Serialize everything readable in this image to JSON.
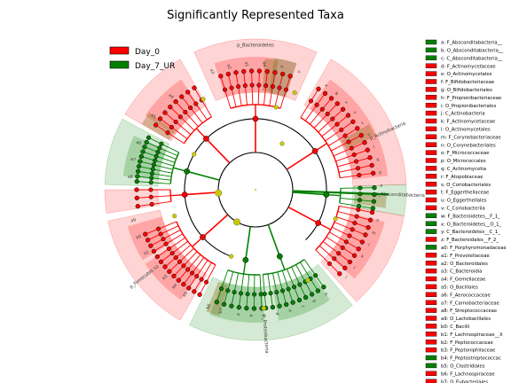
{
  "chart_data": {
    "type": "cladogram",
    "title": "Significantly Represented Taxa",
    "groups": [
      {
        "name": "Day_0",
        "color": "#ff0000"
      },
      {
        "name": "Day_7_UR",
        "color": "#008000"
      }
    ],
    "key_entries": [
      {
        "label": "a: F_Absconditabacteria__",
        "group": "Day_7_UR"
      },
      {
        "label": "b: O_Absconditabacteria__",
        "group": "Day_7_UR"
      },
      {
        "label": "c: C_Absconditabacteria__",
        "group": "Day_7_UR"
      },
      {
        "label": "d: F_Actinomycetaceae",
        "group": "Day_0"
      },
      {
        "label": "e: O_Actinomycetales",
        "group": "Day_0"
      },
      {
        "label": "f: F_Bifidobacteriaceae",
        "group": "Day_0"
      },
      {
        "label": "g: O_Bifidobacteriales",
        "group": "Day_0"
      },
      {
        "label": "h: F_Propionibacteriaceae",
        "group": "Day_0"
      },
      {
        "label": "i: O_Propionibacteriales",
        "group": "Day_0"
      },
      {
        "label": "j: C_Actinobacteria",
        "group": "Day_0"
      },
      {
        "label": "k: F_Actinomycetaceae",
        "group": "Day_0"
      },
      {
        "label": "l: O_Actinomycetales",
        "group": "Day_0"
      },
      {
        "label": "m: F_Corynebacteriaceae",
        "group": "Day_0"
      },
      {
        "label": "n: O_Corynebacteriales",
        "group": "Day_0"
      },
      {
        "label": "o: F_Micrococcaceae",
        "group": "Day_0"
      },
      {
        "label": "p: O_Micrococcales",
        "group": "Day_0"
      },
      {
        "label": "q: C_Actinomycetia",
        "group": "Day_0"
      },
      {
        "label": "r: F_Atopobiaceae",
        "group": "Day_0"
      },
      {
        "label": "s: O_Coriobacteriales",
        "group": "Day_0"
      },
      {
        "label": "t: F_Eggerthellaceae",
        "group": "Day_0"
      },
      {
        "label": "u: O_Eggerthellales",
        "group": "Day_0"
      },
      {
        "label": "v: C_Coriobacteriia",
        "group": "Day_0"
      },
      {
        "label": "w: F_Bacteroidetes__F_1_",
        "group": "Day_7_UR"
      },
      {
        "label": "x: O_Bacteroidetes__O_1_",
        "group": "Day_7_UR"
      },
      {
        "label": "y: C_Bacteroidetes__C_1_",
        "group": "Day_7_UR"
      },
      {
        "label": "z: F_Bacteroidales__F_2_",
        "group": "Day_0"
      },
      {
        "label": "a0: F_Porphyromonadaceae",
        "group": "Day_7_UR"
      },
      {
        "label": "a1: F_Prevotellaceae",
        "group": "Day_0"
      },
      {
        "label": "a2: O_Bacteroidales",
        "group": "Day_0"
      },
      {
        "label": "a3: C_Bacteroidia",
        "group": "Day_0"
      },
      {
        "label": "a4: F_Gemellaceae",
        "group": "Day_0"
      },
      {
        "label": "a5: O_Bacillales",
        "group": "Day_0"
      },
      {
        "label": "a6: F_Aerococcaceae",
        "group": "Day_0"
      },
      {
        "label": "a7: F_Carnobacteriaceae",
        "group": "Day_0"
      },
      {
        "label": "a8: F_Streptococcaceae",
        "group": "Day_0"
      },
      {
        "label": "a9: O_Lactobacillales",
        "group": "Day_0"
      },
      {
        "label": "b0: C_Bacilli",
        "group": "Day_0"
      },
      {
        "label": "b1: F_Lachnospiraceae__X",
        "group": "Day_0"
      },
      {
        "label": "b2: F_Peptococcaceae",
        "group": "Day_0"
      },
      {
        "label": "b3: F_Peptoniphilaceae",
        "group": "Day_0"
      },
      {
        "label": "b4: F_Peptostreptococcac",
        "group": "Day_7_UR"
      },
      {
        "label": "b5: O_Clostridiales",
        "group": "Day_7_UR"
      },
      {
        "label": "b6: F_Lachnospiraceae",
        "group": "Day_0"
      },
      {
        "label": "b7: O_Eubacteriales",
        "group": "Day_0"
      }
    ],
    "sectors": [
      {
        "label": "p_Bacteroidetes",
        "group": "Day_0"
      },
      {
        "label": "p_Actinobacteria",
        "group": "Day_0"
      },
      {
        "label": "p_Absconditabacteria",
        "group": "Day_7_UR"
      },
      {
        "label": "p_Proteobacteria",
        "group": "Day_7_UR"
      },
      {
        "label": "p_Firmicutes",
        "group": "Day_0"
      }
    ],
    "clade_labels": [
      "a3",
      "a2",
      "a1",
      "a0",
      "z",
      "y",
      "x",
      "w",
      "v",
      "u",
      "t",
      "s",
      "r",
      "q",
      "p",
      "o",
      "n",
      "m",
      "l",
      "k",
      "j",
      "i",
      "h",
      "g",
      "f",
      "e",
      "d",
      "c",
      "b",
      "a",
      "b7",
      "b6",
      "b5",
      "b4",
      "b3",
      "b2",
      "b1",
      "b0",
      "a9",
      "a8",
      "a7",
      "a6",
      "a5",
      "a4"
    ]
  }
}
